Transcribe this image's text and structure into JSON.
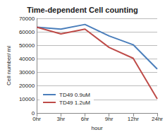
{
  "chart_data": {
    "type": "line",
    "title": "Time-dependent Cell counting",
    "x_label": "hour",
    "y_label": "Cell number/ ml",
    "categories": [
      "0hr",
      "3hr",
      "6hr",
      "9hr",
      "12hr",
      "24hr"
    ],
    "series": [
      {
        "name": "TD49 0.9uM",
        "color": "#4a7ebb",
        "values": [
          63500,
          62000,
          65500,
          57000,
          50500,
          32500
        ]
      },
      {
        "name": "TD49 1.2uM",
        "color": "#be4b48",
        "values": [
          63500,
          58500,
          62000,
          48500,
          40500,
          10500
        ]
      }
    ],
    "ylim": [
      0,
      70000
    ],
    "yticks": [
      0,
      10000,
      20000,
      30000,
      40000,
      50000,
      60000,
      70000
    ],
    "grid": true,
    "legend": "lower left"
  }
}
